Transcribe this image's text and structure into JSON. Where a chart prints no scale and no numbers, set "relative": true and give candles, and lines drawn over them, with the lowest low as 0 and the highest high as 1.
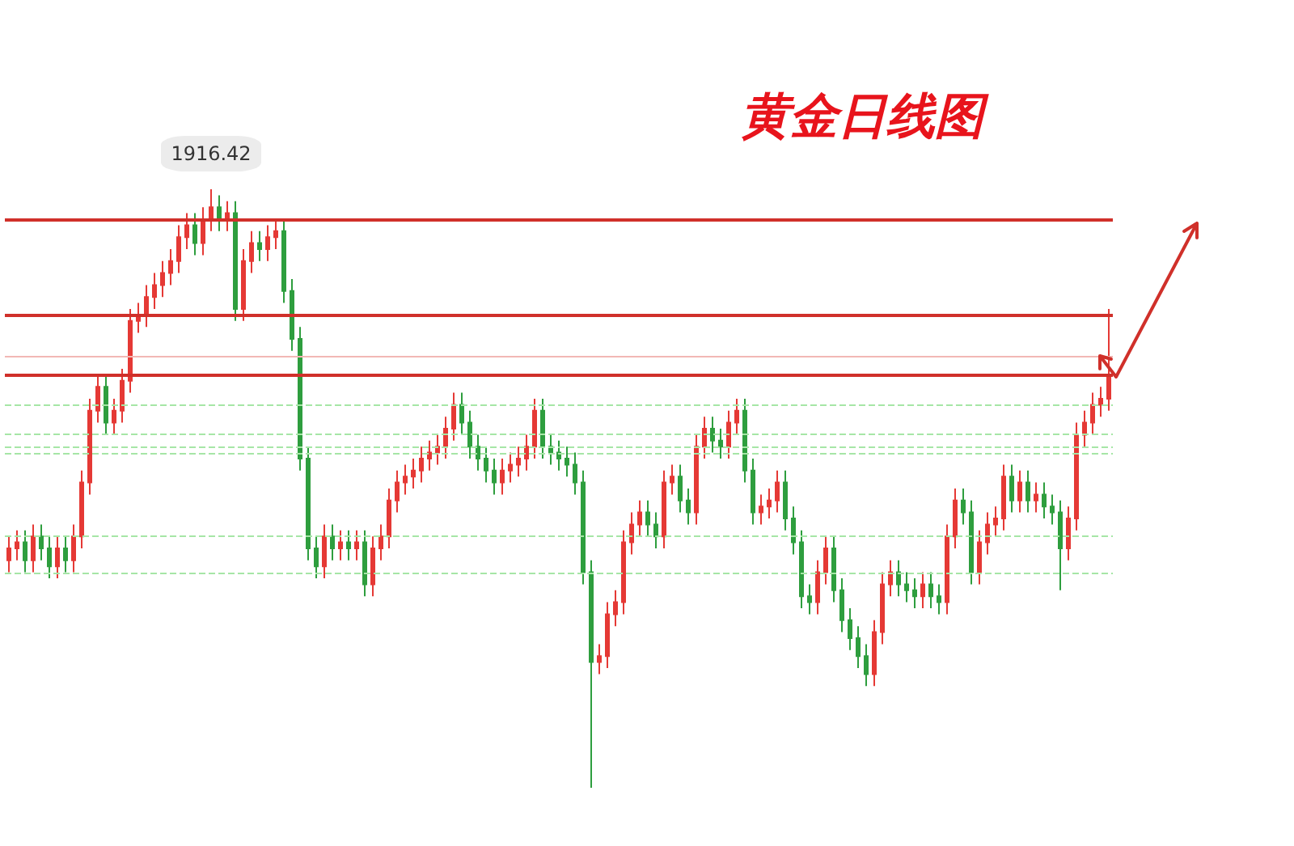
{
  "chart_data": {
    "type": "candlestick",
    "title": "黄金日线图",
    "relative": true,
    "annotations": [
      "1916.42"
    ],
    "categories": [
      null,
      null,
      null,
      null,
      null,
      null,
      null,
      null,
      null,
      null,
      null,
      null,
      null,
      null,
      null,
      null,
      null,
      null,
      null,
      null,
      null,
      null,
      null,
      null,
      null,
      null,
      null,
      null,
      null,
      null,
      null,
      null,
      null,
      null,
      null,
      null,
      null,
      null,
      null,
      null,
      null,
      null,
      null,
      null,
      null,
      null,
      null,
      null,
      null,
      null,
      null,
      null,
      null,
      null,
      null,
      null,
      null,
      null,
      null,
      null,
      null,
      null,
      null,
      null,
      null,
      null,
      null,
      null,
      null,
      null,
      null,
      null,
      null,
      null,
      null,
      null,
      null,
      null,
      null,
      null,
      null,
      null,
      null,
      null,
      null,
      null,
      null,
      null,
      null,
      null,
      null,
      null,
      null,
      null,
      null,
      null,
      null,
      null,
      null,
      null,
      null,
      null,
      null,
      null,
      null,
      null,
      null,
      null,
      null,
      null,
      null,
      null,
      null,
      null,
      null,
      null,
      null,
      null,
      null,
      null,
      null,
      null,
      null,
      null,
      null,
      null,
      null,
      null,
      null,
      null,
      null,
      null,
      null,
      null,
      null,
      null,
      null
    ],
    "ohlc": [
      [
        0.38,
        0.42,
        0.36,
        0.4
      ],
      [
        0.4,
        0.43,
        0.38,
        0.41
      ],
      [
        0.41,
        0.43,
        0.36,
        0.38
      ],
      [
        0.38,
        0.44,
        0.36,
        0.42
      ],
      [
        0.42,
        0.44,
        0.38,
        0.4
      ],
      [
        0.4,
        0.42,
        0.35,
        0.37
      ],
      [
        0.37,
        0.42,
        0.35,
        0.4
      ],
      [
        0.4,
        0.42,
        0.36,
        0.38
      ],
      [
        0.38,
        0.44,
        0.36,
        0.42
      ],
      [
        0.42,
        0.53,
        0.4,
        0.51
      ],
      [
        0.51,
        0.65,
        0.49,
        0.63
      ],
      [
        0.63,
        0.69,
        0.61,
        0.67
      ],
      [
        0.67,
        0.69,
        0.59,
        0.61
      ],
      [
        0.61,
        0.65,
        0.59,
        0.63
      ],
      [
        0.63,
        0.7,
        0.61,
        0.68
      ],
      [
        0.68,
        0.8,
        0.66,
        0.78
      ],
      [
        0.78,
        0.81,
        0.76,
        0.79
      ],
      [
        0.79,
        0.84,
        0.77,
        0.82
      ],
      [
        0.82,
        0.86,
        0.8,
        0.84
      ],
      [
        0.84,
        0.88,
        0.82,
        0.86
      ],
      [
        0.86,
        0.9,
        0.84,
        0.88
      ],
      [
        0.88,
        0.94,
        0.86,
        0.92
      ],
      [
        0.92,
        0.96,
        0.9,
        0.94
      ],
      [
        0.94,
        0.96,
        0.89,
        0.91
      ],
      [
        0.91,
        0.97,
        0.89,
        0.95
      ],
      [
        0.95,
        1.0,
        0.93,
        0.97
      ],
      [
        0.97,
        0.99,
        0.93,
        0.95
      ],
      [
        0.95,
        0.98,
        0.93,
        0.96
      ],
      [
        0.96,
        0.98,
        0.78,
        0.8
      ],
      [
        0.8,
        0.9,
        0.78,
        0.88
      ],
      [
        0.88,
        0.93,
        0.86,
        0.91
      ],
      [
        0.91,
        0.93,
        0.88,
        0.9
      ],
      [
        0.9,
        0.94,
        0.88,
        0.92
      ],
      [
        0.92,
        0.95,
        0.9,
        0.93
      ],
      [
        0.93,
        0.95,
        0.81,
        0.83
      ],
      [
        0.83,
        0.85,
        0.73,
        0.75
      ],
      [
        0.75,
        0.77,
        0.53,
        0.55
      ],
      [
        0.55,
        0.57,
        0.38,
        0.4
      ],
      [
        0.4,
        0.42,
        0.35,
        0.37
      ],
      [
        0.37,
        0.44,
        0.35,
        0.42
      ],
      [
        0.42,
        0.44,
        0.38,
        0.4
      ],
      [
        0.4,
        0.43,
        0.38,
        0.41
      ],
      [
        0.41,
        0.43,
        0.38,
        0.4
      ],
      [
        0.4,
        0.43,
        0.38,
        0.41
      ],
      [
        0.41,
        0.43,
        0.32,
        0.34
      ],
      [
        0.34,
        0.42,
        0.32,
        0.4
      ],
      [
        0.4,
        0.44,
        0.38,
        0.42
      ],
      [
        0.42,
        0.5,
        0.4,
        0.48
      ],
      [
        0.48,
        0.53,
        0.46,
        0.51
      ],
      [
        0.51,
        0.54,
        0.49,
        0.52
      ],
      [
        0.52,
        0.55,
        0.5,
        0.53
      ],
      [
        0.53,
        0.57,
        0.51,
        0.55
      ],
      [
        0.55,
        0.58,
        0.53,
        0.56
      ],
      [
        0.56,
        0.59,
        0.54,
        0.57
      ],
      [
        0.57,
        0.62,
        0.55,
        0.6
      ],
      [
        0.6,
        0.66,
        0.58,
        0.64
      ],
      [
        0.64,
        0.66,
        0.59,
        0.61
      ],
      [
        0.61,
        0.63,
        0.55,
        0.57
      ],
      [
        0.57,
        0.59,
        0.53,
        0.55
      ],
      [
        0.55,
        0.57,
        0.51,
        0.53
      ],
      [
        0.53,
        0.55,
        0.49,
        0.51
      ],
      [
        0.51,
        0.55,
        0.49,
        0.53
      ],
      [
        0.53,
        0.56,
        0.51,
        0.54
      ],
      [
        0.54,
        0.57,
        0.52,
        0.55
      ],
      [
        0.55,
        0.59,
        0.53,
        0.57
      ],
      [
        0.57,
        0.65,
        0.55,
        0.63
      ],
      [
        0.63,
        0.65,
        0.55,
        0.57
      ],
      [
        0.57,
        0.59,
        0.54,
        0.56
      ],
      [
        0.56,
        0.58,
        0.53,
        0.55
      ],
      [
        0.55,
        0.57,
        0.52,
        0.54
      ],
      [
        0.54,
        0.56,
        0.49,
        0.51
      ],
      [
        0.51,
        0.53,
        0.34,
        0.36
      ],
      [
        0.36,
        0.38,
        0.0,
        0.21
      ],
      [
        0.21,
        0.24,
        0.19,
        0.22
      ],
      [
        0.22,
        0.31,
        0.2,
        0.29
      ],
      [
        0.29,
        0.33,
        0.27,
        0.31
      ],
      [
        0.31,
        0.43,
        0.29,
        0.41
      ],
      [
        0.41,
        0.46,
        0.39,
        0.44
      ],
      [
        0.44,
        0.48,
        0.42,
        0.46
      ],
      [
        0.46,
        0.48,
        0.42,
        0.44
      ],
      [
        0.44,
        0.46,
        0.4,
        0.42
      ],
      [
        0.42,
        0.53,
        0.4,
        0.51
      ],
      [
        0.51,
        0.54,
        0.49,
        0.52
      ],
      [
        0.52,
        0.54,
        0.46,
        0.48
      ],
      [
        0.48,
        0.5,
        0.44,
        0.46
      ],
      [
        0.46,
        0.59,
        0.44,
        0.57
      ],
      [
        0.57,
        0.62,
        0.55,
        0.6
      ],
      [
        0.6,
        0.62,
        0.56,
        0.58
      ],
      [
        0.58,
        0.6,
        0.55,
        0.57
      ],
      [
        0.57,
        0.63,
        0.55,
        0.61
      ],
      [
        0.61,
        0.65,
        0.59,
        0.63
      ],
      [
        0.63,
        0.65,
        0.51,
        0.53
      ],
      [
        0.53,
        0.55,
        0.44,
        0.46
      ],
      [
        0.46,
        0.49,
        0.44,
        0.47
      ],
      [
        0.47,
        0.5,
        0.45,
        0.48
      ],
      [
        0.48,
        0.53,
        0.46,
        0.51
      ],
      [
        0.51,
        0.53,
        0.43,
        0.45
      ],
      [
        0.45,
        0.47,
        0.39,
        0.41
      ],
      [
        0.41,
        0.43,
        0.3,
        0.32
      ],
      [
        0.32,
        0.34,
        0.29,
        0.31
      ],
      [
        0.31,
        0.38,
        0.29,
        0.36
      ],
      [
        0.36,
        0.42,
        0.34,
        0.4
      ],
      [
        0.4,
        0.42,
        0.31,
        0.33
      ],
      [
        0.33,
        0.35,
        0.26,
        0.28
      ],
      [
        0.28,
        0.3,
        0.23,
        0.25
      ],
      [
        0.25,
        0.27,
        0.2,
        0.22
      ],
      [
        0.22,
        0.24,
        0.17,
        0.19
      ],
      [
        0.19,
        0.28,
        0.17,
        0.26
      ],
      [
        0.26,
        0.36,
        0.24,
        0.34
      ],
      [
        0.34,
        0.38,
        0.32,
        0.36
      ],
      [
        0.36,
        0.38,
        0.32,
        0.34
      ],
      [
        0.34,
        0.36,
        0.31,
        0.33
      ],
      [
        0.33,
        0.35,
        0.3,
        0.32
      ],
      [
        0.32,
        0.36,
        0.3,
        0.34
      ],
      [
        0.34,
        0.36,
        0.3,
        0.32
      ],
      [
        0.32,
        0.34,
        0.29,
        0.31
      ],
      [
        0.31,
        0.44,
        0.29,
        0.42
      ],
      [
        0.42,
        0.5,
        0.4,
        0.48
      ],
      [
        0.48,
        0.5,
        0.44,
        0.46
      ],
      [
        0.46,
        0.48,
        0.34,
        0.36
      ],
      [
        0.36,
        0.43,
        0.34,
        0.41
      ],
      [
        0.41,
        0.46,
        0.39,
        0.44
      ],
      [
        0.44,
        0.47,
        0.42,
        0.45
      ],
      [
        0.45,
        0.54,
        0.43,
        0.52
      ],
      [
        0.52,
        0.54,
        0.46,
        0.48
      ],
      [
        0.48,
        0.53,
        0.46,
        0.51
      ],
      [
        0.51,
        0.53,
        0.46,
        0.48
      ],
      [
        0.48,
        0.51,
        0.46,
        0.49
      ],
      [
        0.49,
        0.51,
        0.45,
        0.47
      ],
      [
        0.47,
        0.49,
        0.44,
        0.46
      ],
      [
        0.46,
        0.48,
        0.33,
        0.4
      ],
      [
        0.4,
        0.47,
        0.38,
        0.45
      ],
      [
        0.45,
        0.61,
        0.43,
        0.59
      ],
      [
        0.59,
        0.63,
        0.57,
        0.61
      ],
      [
        0.61,
        0.66,
        0.59,
        0.64
      ],
      [
        0.64,
        0.67,
        0.62,
        0.65
      ],
      [
        0.65,
        0.8,
        0.63,
        0.69
      ]
    ],
    "ref_lines": [
      {
        "axis": "y",
        "value": 0.95,
        "color": "#d0302a",
        "line_style": "solid"
      },
      {
        "axis": "y",
        "value": 0.79,
        "color": "#d0302a",
        "line_style": "solid"
      },
      {
        "axis": "y",
        "value": 0.72,
        "color": "#f2b8b5",
        "line_style": "solid"
      },
      {
        "axis": "y",
        "value": 0.69,
        "color": "#d0302a",
        "line_style": "solid"
      },
      {
        "axis": "y",
        "value": 0.64,
        "color": "#a6e6a6",
        "line_style": "dashed"
      },
      {
        "axis": "y",
        "value": 0.59,
        "color": "#a6e6a6",
        "line_style": "dashed"
      },
      {
        "axis": "y",
        "value": 0.57,
        "color": "#a6e6a6",
        "line_style": "dashed"
      },
      {
        "axis": "y",
        "value": 0.56,
        "color": "#a6e6a6",
        "line_style": "dashed"
      },
      {
        "axis": "y",
        "value": 0.42,
        "color": "#a6e6a6",
        "line_style": "dashed"
      },
      {
        "axis": "y",
        "value": 0.36,
        "color": "#a6e6a6",
        "line_style": "dashed"
      }
    ]
  }
}
